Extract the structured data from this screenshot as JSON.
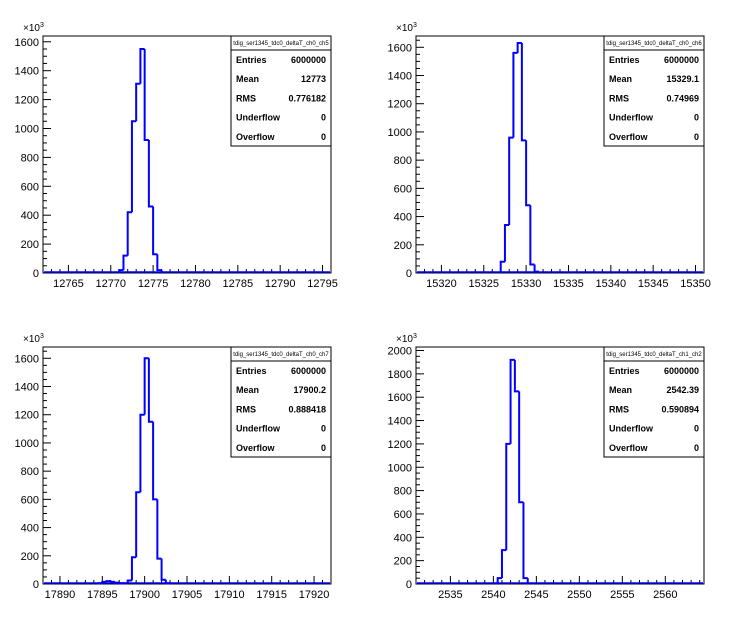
{
  "chart_data": [
    {
      "type": "histogram",
      "title": "tdig_ser1345_tdc0_deltaT_ch0_ch5",
      "y_exponent_label": "×10",
      "y_exponent": "3",
      "x_ticks": [
        12765,
        12770,
        12775,
        12780,
        12785,
        12790,
        12795
      ],
      "y_ticks": [
        0,
        200,
        400,
        600,
        800,
        1000,
        1200,
        1400,
        1600
      ],
      "xlim": [
        12762,
        12796
      ],
      "ylim": [
        0,
        1640
      ],
      "bin_width": 0.5,
      "bins": [
        {
          "x": 12771.0,
          "y": 20
        },
        {
          "x": 12771.5,
          "y": 120
        },
        {
          "x": 12772.0,
          "y": 420
        },
        {
          "x": 12772.5,
          "y": 1050
        },
        {
          "x": 12773.0,
          "y": 1310
        },
        {
          "x": 12773.5,
          "y": 1550
        },
        {
          "x": 12774.0,
          "y": 920
        },
        {
          "x": 12774.5,
          "y": 460
        },
        {
          "x": 12775.0,
          "y": 130
        },
        {
          "x": 12775.5,
          "y": 20
        }
      ],
      "stats": [
        {
          "label": "Entries",
          "value": "6000000"
        },
        {
          "label": "Mean",
          "value": "12773"
        },
        {
          "label": "RMS",
          "value": "0.776182"
        },
        {
          "label": "Underflow",
          "value": "0"
        },
        {
          "label": "Overflow",
          "value": "0"
        }
      ],
      "line_color": "#0000ff"
    },
    {
      "type": "histogram",
      "title": "tdig_ser1345_tdc0_deltaT_ch0_ch6",
      "y_exponent_label": "×10",
      "y_exponent": "3",
      "x_ticks": [
        15320,
        15325,
        15330,
        15335,
        15340,
        15345,
        15350
      ],
      "y_ticks": [
        0,
        200,
        400,
        600,
        800,
        1000,
        1200,
        1400,
        1600
      ],
      "xlim": [
        15317,
        15351
      ],
      "ylim": [
        0,
        1680
      ],
      "bin_width": 0.5,
      "bins": [
        {
          "x": 15327.0,
          "y": 80
        },
        {
          "x": 15327.5,
          "y": 340
        },
        {
          "x": 15328.0,
          "y": 960
        },
        {
          "x": 15328.5,
          "y": 1560
        },
        {
          "x": 15329.0,
          "y": 1630
        },
        {
          "x": 15329.5,
          "y": 940
        },
        {
          "x": 15330.0,
          "y": 480
        },
        {
          "x": 15330.5,
          "y": 60
        },
        {
          "x": 15331.0,
          "y": 10
        }
      ],
      "stats": [
        {
          "label": "Entries",
          "value": "6000000"
        },
        {
          "label": "Mean",
          "value": "15329.1"
        },
        {
          "label": "RMS",
          "value": "0.74969"
        },
        {
          "label": "Underflow",
          "value": "0"
        },
        {
          "label": "Overflow",
          "value": "0"
        }
      ],
      "line_color": "#0000ff"
    },
    {
      "type": "histogram",
      "title": "tdig_ser1345_tdc0_deltaT_ch0_ch7",
      "y_exponent_label": "×10",
      "y_exponent": "3",
      "x_ticks": [
        17890,
        17895,
        17900,
        17905,
        17910,
        17915,
        17920
      ],
      "y_ticks": [
        0,
        200,
        400,
        600,
        800,
        1000,
        1200,
        1400,
        1600
      ],
      "xlim": [
        17888,
        17922
      ],
      "ylim": [
        0,
        1680
      ],
      "bin_width": 0.5,
      "bins": [
        {
          "x": 17894.5,
          "y": 5
        },
        {
          "x": 17895.0,
          "y": 15
        },
        {
          "x": 17895.5,
          "y": 20
        },
        {
          "x": 17896.0,
          "y": 15
        },
        {
          "x": 17896.5,
          "y": 10
        },
        {
          "x": 17897.0,
          "y": 5
        },
        {
          "x": 17897.5,
          "y": 5
        },
        {
          "x": 17898.0,
          "y": 25
        },
        {
          "x": 17898.5,
          "y": 190
        },
        {
          "x": 17899.0,
          "y": 650
        },
        {
          "x": 17899.5,
          "y": 1200
        },
        {
          "x": 17900.0,
          "y": 1600
        },
        {
          "x": 17900.5,
          "y": 1150
        },
        {
          "x": 17901.0,
          "y": 600
        },
        {
          "x": 17901.5,
          "y": 180
        },
        {
          "x": 17902.0,
          "y": 30
        },
        {
          "x": 17902.5,
          "y": 5
        }
      ],
      "stats": [
        {
          "label": "Entries",
          "value": "6000000"
        },
        {
          "label": "Mean",
          "value": "17900.2"
        },
        {
          "label": "RMS",
          "value": "0.888418"
        },
        {
          "label": "Underflow",
          "value": "0"
        },
        {
          "label": "Overflow",
          "value": "0"
        }
      ],
      "line_color": "#0000ff"
    },
    {
      "type": "histogram",
      "title": "tdig_ser1345_tdc0_deltaT_ch1_ch2",
      "y_exponent_label": "×10",
      "y_exponent": "3",
      "x_ticks": [
        2535,
        2540,
        2545,
        2550,
        2555,
        2560
      ],
      "y_ticks": [
        0,
        200,
        400,
        600,
        800,
        1000,
        1200,
        1400,
        1600,
        1800,
        2000
      ],
      "xlim": [
        2531,
        2564.5
      ],
      "ylim": [
        0,
        2030
      ],
      "bin_width": 0.5,
      "bins": [
        {
          "x": 2540.5,
          "y": 50
        },
        {
          "x": 2541.0,
          "y": 290
        },
        {
          "x": 2541.5,
          "y": 1200
        },
        {
          "x": 2542.0,
          "y": 1920
        },
        {
          "x": 2542.5,
          "y": 1650
        },
        {
          "x": 2543.0,
          "y": 700
        },
        {
          "x": 2543.5,
          "y": 50
        }
      ],
      "stats": [
        {
          "label": "Entries",
          "value": "6000000"
        },
        {
          "label": "Mean",
          "value": "2542.39"
        },
        {
          "label": "RMS",
          "value": "0.590894"
        },
        {
          "label": "Underflow",
          "value": "0"
        },
        {
          "label": "Overflow",
          "value": "0"
        }
      ],
      "line_color": "#0000ff"
    }
  ]
}
